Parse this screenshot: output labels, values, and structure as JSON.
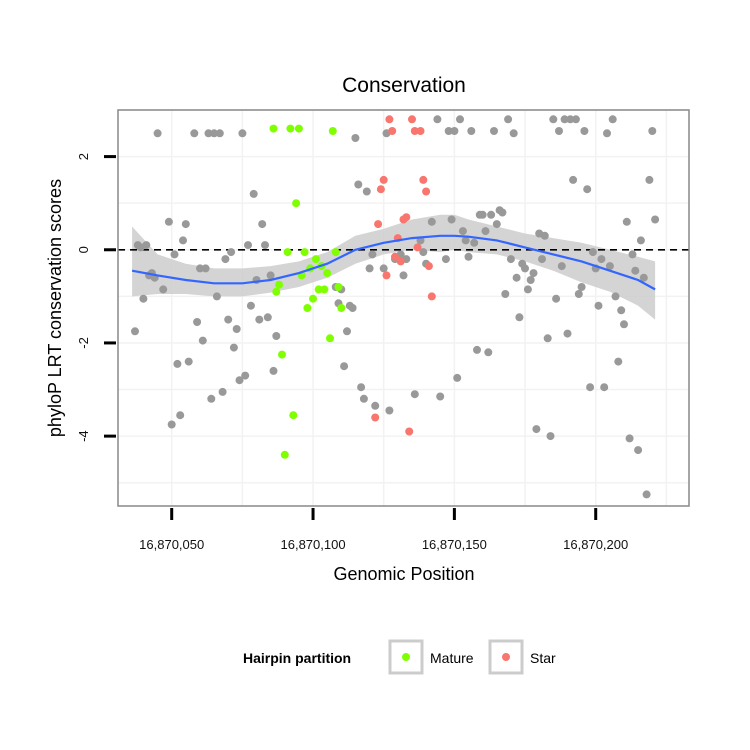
{
  "chart_data": {
    "type": "scatter",
    "title": "Conservation",
    "xlabel": "Genomic Position",
    "ylabel": "phyloP LRT conservation scores",
    "xlim": [
      16870031,
      16870233
    ],
    "ylim": [
      -5.5,
      3.0
    ],
    "x_ticks": [
      16870050,
      16870100,
      16870150,
      16870200
    ],
    "x_tick_labels": [
      "16,870,050",
      "16,870,100",
      "16,870,150",
      "16,870,200"
    ],
    "y_ticks": [
      2,
      0,
      -2,
      -4
    ],
    "y_tick_labels": [
      "2",
      "0",
      "-2",
      "-4"
    ],
    "reference_line": {
      "y": 0,
      "style": "dashed"
    },
    "legend": {
      "title": "Hairpin partition",
      "position": "bottom",
      "entries": [
        {
          "label": "Mature",
          "color": "#7fff00"
        },
        {
          "label": "Star",
          "color": "#f8766d"
        }
      ]
    },
    "colors": {
      "other": "#999999",
      "Mature": "#7fff00",
      "Star": "#f8766d",
      "smooth": "#3366ff",
      "ribbon": "#cccccc"
    },
    "series": [
      {
        "name": "Other",
        "points": [
          [
            16870037,
            -1.75
          ],
          [
            16870038,
            0.1
          ],
          [
            16870039,
            0.05
          ],
          [
            16870040,
            -1.05
          ],
          [
            16870041,
            0.1
          ],
          [
            16870042,
            -0.55
          ],
          [
            16870043,
            -0.5
          ],
          [
            16870044,
            -0.6
          ],
          [
            16870045,
            2.5
          ],
          [
            16870047,
            -0.85
          ],
          [
            16870049,
            0.6
          ],
          [
            16870050,
            -3.75
          ],
          [
            16870051,
            -0.1
          ],
          [
            16870052,
            -2.45
          ],
          [
            16870053,
            -3.55
          ],
          [
            16870054,
            0.2
          ],
          [
            16870055,
            0.55
          ],
          [
            16870056,
            -2.4
          ],
          [
            16870058,
            2.5
          ],
          [
            16870059,
            -1.55
          ],
          [
            16870060,
            -0.4
          ],
          [
            16870061,
            -1.95
          ],
          [
            16870062,
            -0.4
          ],
          [
            16870063,
            2.5
          ],
          [
            16870064,
            -3.2
          ],
          [
            16870065,
            2.5
          ],
          [
            16870066,
            -1.0
          ],
          [
            16870067,
            2.5
          ],
          [
            16870068,
            -3.05
          ],
          [
            16870069,
            -0.2
          ],
          [
            16870070,
            -1.5
          ],
          [
            16870071,
            -0.05
          ],
          [
            16870072,
            -2.1
          ],
          [
            16870073,
            -1.7
          ],
          [
            16870074,
            -2.8
          ],
          [
            16870075,
            2.5
          ],
          [
            16870076,
            -2.7
          ],
          [
            16870077,
            0.1
          ],
          [
            16870078,
            -1.2
          ],
          [
            16870079,
            1.2
          ],
          [
            16870080,
            -0.65
          ],
          [
            16870081,
            -1.5
          ],
          [
            16870082,
            0.55
          ],
          [
            16870083,
            0.1
          ],
          [
            16870084,
            -1.45
          ],
          [
            16870085,
            -0.55
          ],
          [
            16870086,
            -2.6
          ],
          [
            16870087,
            -1.85
          ],
          [
            16870108,
            -0.8
          ],
          [
            16870109,
            -1.15
          ],
          [
            16870110,
            -0.85
          ],
          [
            16870111,
            -2.5
          ],
          [
            16870112,
            -1.75
          ],
          [
            16870113,
            -1.2
          ],
          [
            16870114,
            -1.25
          ],
          [
            16870115,
            2.4
          ],
          [
            16870116,
            1.4
          ],
          [
            16870117,
            -2.95
          ],
          [
            16870118,
            -3.2
          ],
          [
            16870119,
            1.25
          ],
          [
            16870120,
            -0.4
          ],
          [
            16870121,
            -0.1
          ],
          [
            16870122,
            -3.35
          ],
          [
            16870125,
            -0.4
          ],
          [
            16870126,
            2.5
          ],
          [
            16870127,
            -3.45
          ],
          [
            16870129,
            -0.2
          ],
          [
            16870131,
            -0.1
          ],
          [
            16870132,
            -0.55
          ],
          [
            16870133,
            -0.2
          ],
          [
            16870136,
            -3.1
          ],
          [
            16870138,
            0.2
          ],
          [
            16870139,
            -0.05
          ],
          [
            16870140,
            -0.3
          ],
          [
            16870142,
            0.6
          ],
          [
            16870144,
            2.8
          ],
          [
            16870145,
            -3.15
          ],
          [
            16870147,
            -0.2
          ],
          [
            16870148,
            2.55
          ],
          [
            16870149,
            0.65
          ],
          [
            16870150,
            2.55
          ],
          [
            16870151,
            -2.75
          ],
          [
            16870152,
            2.8
          ],
          [
            16870153,
            0.4
          ],
          [
            16870154,
            0.2
          ],
          [
            16870155,
            -0.15
          ],
          [
            16870156,
            2.55
          ],
          [
            16870157,
            0.15
          ],
          [
            16870158,
            -2.15
          ],
          [
            16870159,
            0.75
          ],
          [
            16870160,
            0.75
          ],
          [
            16870161,
            0.4
          ],
          [
            16870162,
            -2.2
          ],
          [
            16870163,
            0.75
          ],
          [
            16870164,
            2.55
          ],
          [
            16870165,
            0.55
          ],
          [
            16870166,
            0.85
          ],
          [
            16870167,
            0.8
          ],
          [
            16870168,
            -0.95
          ],
          [
            16870169,
            2.8
          ],
          [
            16870170,
            -0.2
          ],
          [
            16870171,
            2.5
          ],
          [
            16870172,
            -0.6
          ],
          [
            16870173,
            -1.45
          ],
          [
            16870174,
            -0.3
          ],
          [
            16870175,
            -0.4
          ],
          [
            16870176,
            -0.85
          ],
          [
            16870177,
            -0.65
          ],
          [
            16870178,
            -0.5
          ],
          [
            16870179,
            -3.85
          ],
          [
            16870180,
            0.35
          ],
          [
            16870181,
            -0.2
          ],
          [
            16870182,
            0.3
          ],
          [
            16870183,
            -1.9
          ],
          [
            16870184,
            -4.0
          ],
          [
            16870185,
            2.8
          ],
          [
            16870186,
            -1.05
          ],
          [
            16870187,
            2.55
          ],
          [
            16870188,
            -0.35
          ],
          [
            16870189,
            2.8
          ],
          [
            16870190,
            -1.8
          ],
          [
            16870191,
            2.8
          ],
          [
            16870192,
            1.5
          ],
          [
            16870193,
            2.8
          ],
          [
            16870194,
            -0.95
          ],
          [
            16870195,
            -0.8
          ],
          [
            16870196,
            2.55
          ],
          [
            16870197,
            1.3
          ],
          [
            16870198,
            -2.95
          ],
          [
            16870199,
            -0.05
          ],
          [
            16870200,
            -0.4
          ],
          [
            16870201,
            -1.2
          ],
          [
            16870202,
            -0.2
          ],
          [
            16870203,
            -2.95
          ],
          [
            16870204,
            2.5
          ],
          [
            16870205,
            -0.35
          ],
          [
            16870206,
            2.8
          ],
          [
            16870207,
            -1.0
          ],
          [
            16870208,
            -2.4
          ],
          [
            16870209,
            -1.3
          ],
          [
            16870210,
            -1.6
          ],
          [
            16870211,
            0.6
          ],
          [
            16870212,
            -4.05
          ],
          [
            16870213,
            -0.1
          ],
          [
            16870214,
            -0.45
          ],
          [
            16870215,
            -4.3
          ],
          [
            16870216,
            0.2
          ],
          [
            16870217,
            -0.6
          ],
          [
            16870218,
            -5.25
          ],
          [
            16870219,
            1.5
          ],
          [
            16870220,
            2.55
          ],
          [
            16870221,
            0.65
          ]
        ]
      },
      {
        "name": "Mature",
        "points": [
          [
            16870086,
            2.6
          ],
          [
            16870087,
            -0.9
          ],
          [
            16870088,
            -0.75
          ],
          [
            16870089,
            -2.25
          ],
          [
            16870090,
            -4.4
          ],
          [
            16870091,
            -0.05
          ],
          [
            16870092,
            2.6
          ],
          [
            16870093,
            -3.55
          ],
          [
            16870094,
            1.0
          ],
          [
            16870095,
            2.6
          ],
          [
            16870096,
            -0.55
          ],
          [
            16870097,
            -0.05
          ],
          [
            16870098,
            -1.25
          ],
          [
            16870099,
            -0.4
          ],
          [
            16870100,
            -1.05
          ],
          [
            16870101,
            -0.2
          ],
          [
            16870102,
            -0.85
          ],
          [
            16870103,
            -0.35
          ],
          [
            16870104,
            -0.85
          ],
          [
            16870105,
            -0.5
          ],
          [
            16870106,
            -1.9
          ],
          [
            16870107,
            2.55
          ],
          [
            16870108,
            -0.05
          ],
          [
            16870109,
            -0.8
          ],
          [
            16870110,
            -1.25
          ]
        ]
      },
      {
        "name": "Star",
        "points": [
          [
            16870122,
            -3.6
          ],
          [
            16870123,
            0.55
          ],
          [
            16870124,
            1.3
          ],
          [
            16870125,
            1.5
          ],
          [
            16870126,
            -0.55
          ],
          [
            16870127,
            2.8
          ],
          [
            16870128,
            2.55
          ],
          [
            16870129,
            -0.15
          ],
          [
            16870130,
            0.25
          ],
          [
            16870131,
            -0.25
          ],
          [
            16870132,
            0.65
          ],
          [
            16870133,
            0.7
          ],
          [
            16870134,
            -3.9
          ],
          [
            16870135,
            2.8
          ],
          [
            16870136,
            2.55
          ],
          [
            16870137,
            0.05
          ],
          [
            16870138,
            2.55
          ],
          [
            16870139,
            1.5
          ],
          [
            16870140,
            1.25
          ],
          [
            16870141,
            -0.35
          ],
          [
            16870142,
            -1.0
          ]
        ]
      }
    ],
    "smooth": {
      "x": [
        16870036,
        16870045,
        16870055,
        16870065,
        16870075,
        16870085,
        16870095,
        16870105,
        16870115,
        16870125,
        16870135,
        16870145,
        16870150,
        16870155,
        16870165,
        16870175,
        16870185,
        16870195,
        16870205,
        16870215,
        16870221
      ],
      "y": [
        -0.45,
        -0.55,
        -0.65,
        -0.72,
        -0.72,
        -0.65,
        -0.5,
        -0.3,
        0.0,
        0.15,
        0.25,
        0.3,
        0.3,
        0.28,
        0.2,
        0.05,
        -0.1,
        -0.25,
        -0.45,
        -0.65,
        -0.85
      ],
      "lower": [
        -1.0,
        -0.95,
        -0.95,
        -1.0,
        -1.0,
        -0.92,
        -0.8,
        -0.6,
        -0.3,
        -0.1,
        0.0,
        -0.05,
        0.0,
        -0.05,
        -0.1,
        -0.25,
        -0.45,
        -0.7,
        -0.9,
        -1.2,
        -1.5
      ],
      "upper": [
        0.5,
        -0.1,
        -0.3,
        -0.4,
        -0.4,
        -0.35,
        -0.25,
        -0.05,
        0.3,
        0.45,
        0.65,
        0.75,
        0.75,
        0.65,
        0.5,
        0.35,
        0.25,
        0.15,
        0.0,
        -0.15,
        -0.25
      ]
    }
  }
}
